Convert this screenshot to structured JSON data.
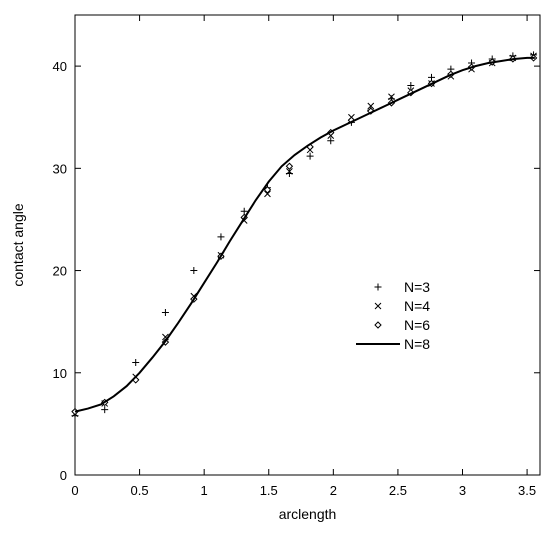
{
  "chart_data": {
    "type": "scatter",
    "xlabel": "arclength",
    "ylabel": "contact angle",
    "xlim": [
      0,
      3.6
    ],
    "ylim": [
      0,
      45
    ],
    "xticks": [
      0,
      0.5,
      1,
      1.5,
      2,
      2.5,
      3,
      3.5
    ],
    "xtick_labels": [
      "0",
      "0.5",
      "1",
      "1.5",
      "2",
      "2.5",
      "3",
      "3.5"
    ],
    "yticks": [
      0,
      10,
      20,
      30,
      40
    ],
    "ytick_labels": [
      "0",
      "10",
      "20",
      "30",
      "40"
    ],
    "legend_position": "center-right",
    "grid": false,
    "series": [
      {
        "name": "N=3",
        "marker": "plus",
        "x": [
          0,
          0.23,
          0.47,
          0.7,
          0.92,
          1.13,
          1.31,
          1.49,
          1.66,
          1.82,
          1.98,
          2.14,
          2.29,
          2.45,
          2.6,
          2.76,
          2.91,
          3.07,
          3.23,
          3.39,
          3.55
        ],
        "y": [
          5.8,
          6.4,
          11.0,
          15.9,
          20.0,
          23.3,
          25.8,
          28.1,
          29.5,
          31.2,
          32.7,
          34.5,
          35.7,
          36.8,
          38.1,
          38.9,
          39.7,
          40.3,
          40.7,
          41.0,
          41.1
        ]
      },
      {
        "name": "N=4",
        "marker": "cross",
        "x": [
          0,
          0.23,
          0.47,
          0.7,
          0.92,
          1.13,
          1.31,
          1.49,
          1.66,
          1.82,
          1.98,
          2.14,
          2.29,
          2.45,
          2.6,
          2.76,
          2.91,
          3.07,
          3.23,
          3.39,
          3.55
        ],
        "y": [
          6.0,
          7.0,
          9.6,
          13.5,
          17.5,
          21.5,
          24.9,
          27.5,
          29.7,
          31.8,
          33.2,
          35.0,
          36.1,
          37.0,
          37.6,
          38.3,
          39.0,
          39.7,
          40.3,
          40.8,
          41.0
        ]
      },
      {
        "name": "N=6",
        "marker": "diamond",
        "x": [
          0,
          0.23,
          0.47,
          0.7,
          0.92,
          1.13,
          1.31,
          1.49,
          1.66,
          1.82,
          1.98,
          2.14,
          2.29,
          2.45,
          2.6,
          2.76,
          2.91,
          3.07,
          3.23,
          3.39,
          3.55
        ],
        "y": [
          6.2,
          7.1,
          9.3,
          13.0,
          17.2,
          21.4,
          25.2,
          27.9,
          30.2,
          32.1,
          33.5,
          34.7,
          35.6,
          36.4,
          37.4,
          38.3,
          39.2,
          39.9,
          40.4,
          40.7,
          40.8
        ]
      },
      {
        "name": "N=8",
        "marker": "line",
        "x": [
          0,
          0.1,
          0.2,
          0.3,
          0.4,
          0.5,
          0.6,
          0.7,
          0.8,
          0.9,
          1.0,
          1.1,
          1.2,
          1.3,
          1.4,
          1.5,
          1.6,
          1.7,
          1.8,
          1.9,
          2.0,
          2.1,
          2.2,
          2.3,
          2.4,
          2.5,
          2.6,
          2.7,
          2.8,
          2.9,
          3.0,
          3.1,
          3.2,
          3.3,
          3.4,
          3.5,
          3.56
        ],
        "y": [
          6.2,
          6.5,
          6.9,
          7.7,
          8.7,
          10.0,
          11.5,
          13.1,
          14.9,
          16.8,
          18.8,
          20.8,
          22.9,
          24.9,
          26.9,
          28.7,
          30.2,
          31.3,
          32.2,
          33.0,
          33.7,
          34.3,
          34.9,
          35.5,
          36.1,
          36.7,
          37.3,
          37.9,
          38.5,
          39.1,
          39.6,
          40.0,
          40.3,
          40.5,
          40.7,
          40.8,
          40.8
        ]
      }
    ]
  }
}
